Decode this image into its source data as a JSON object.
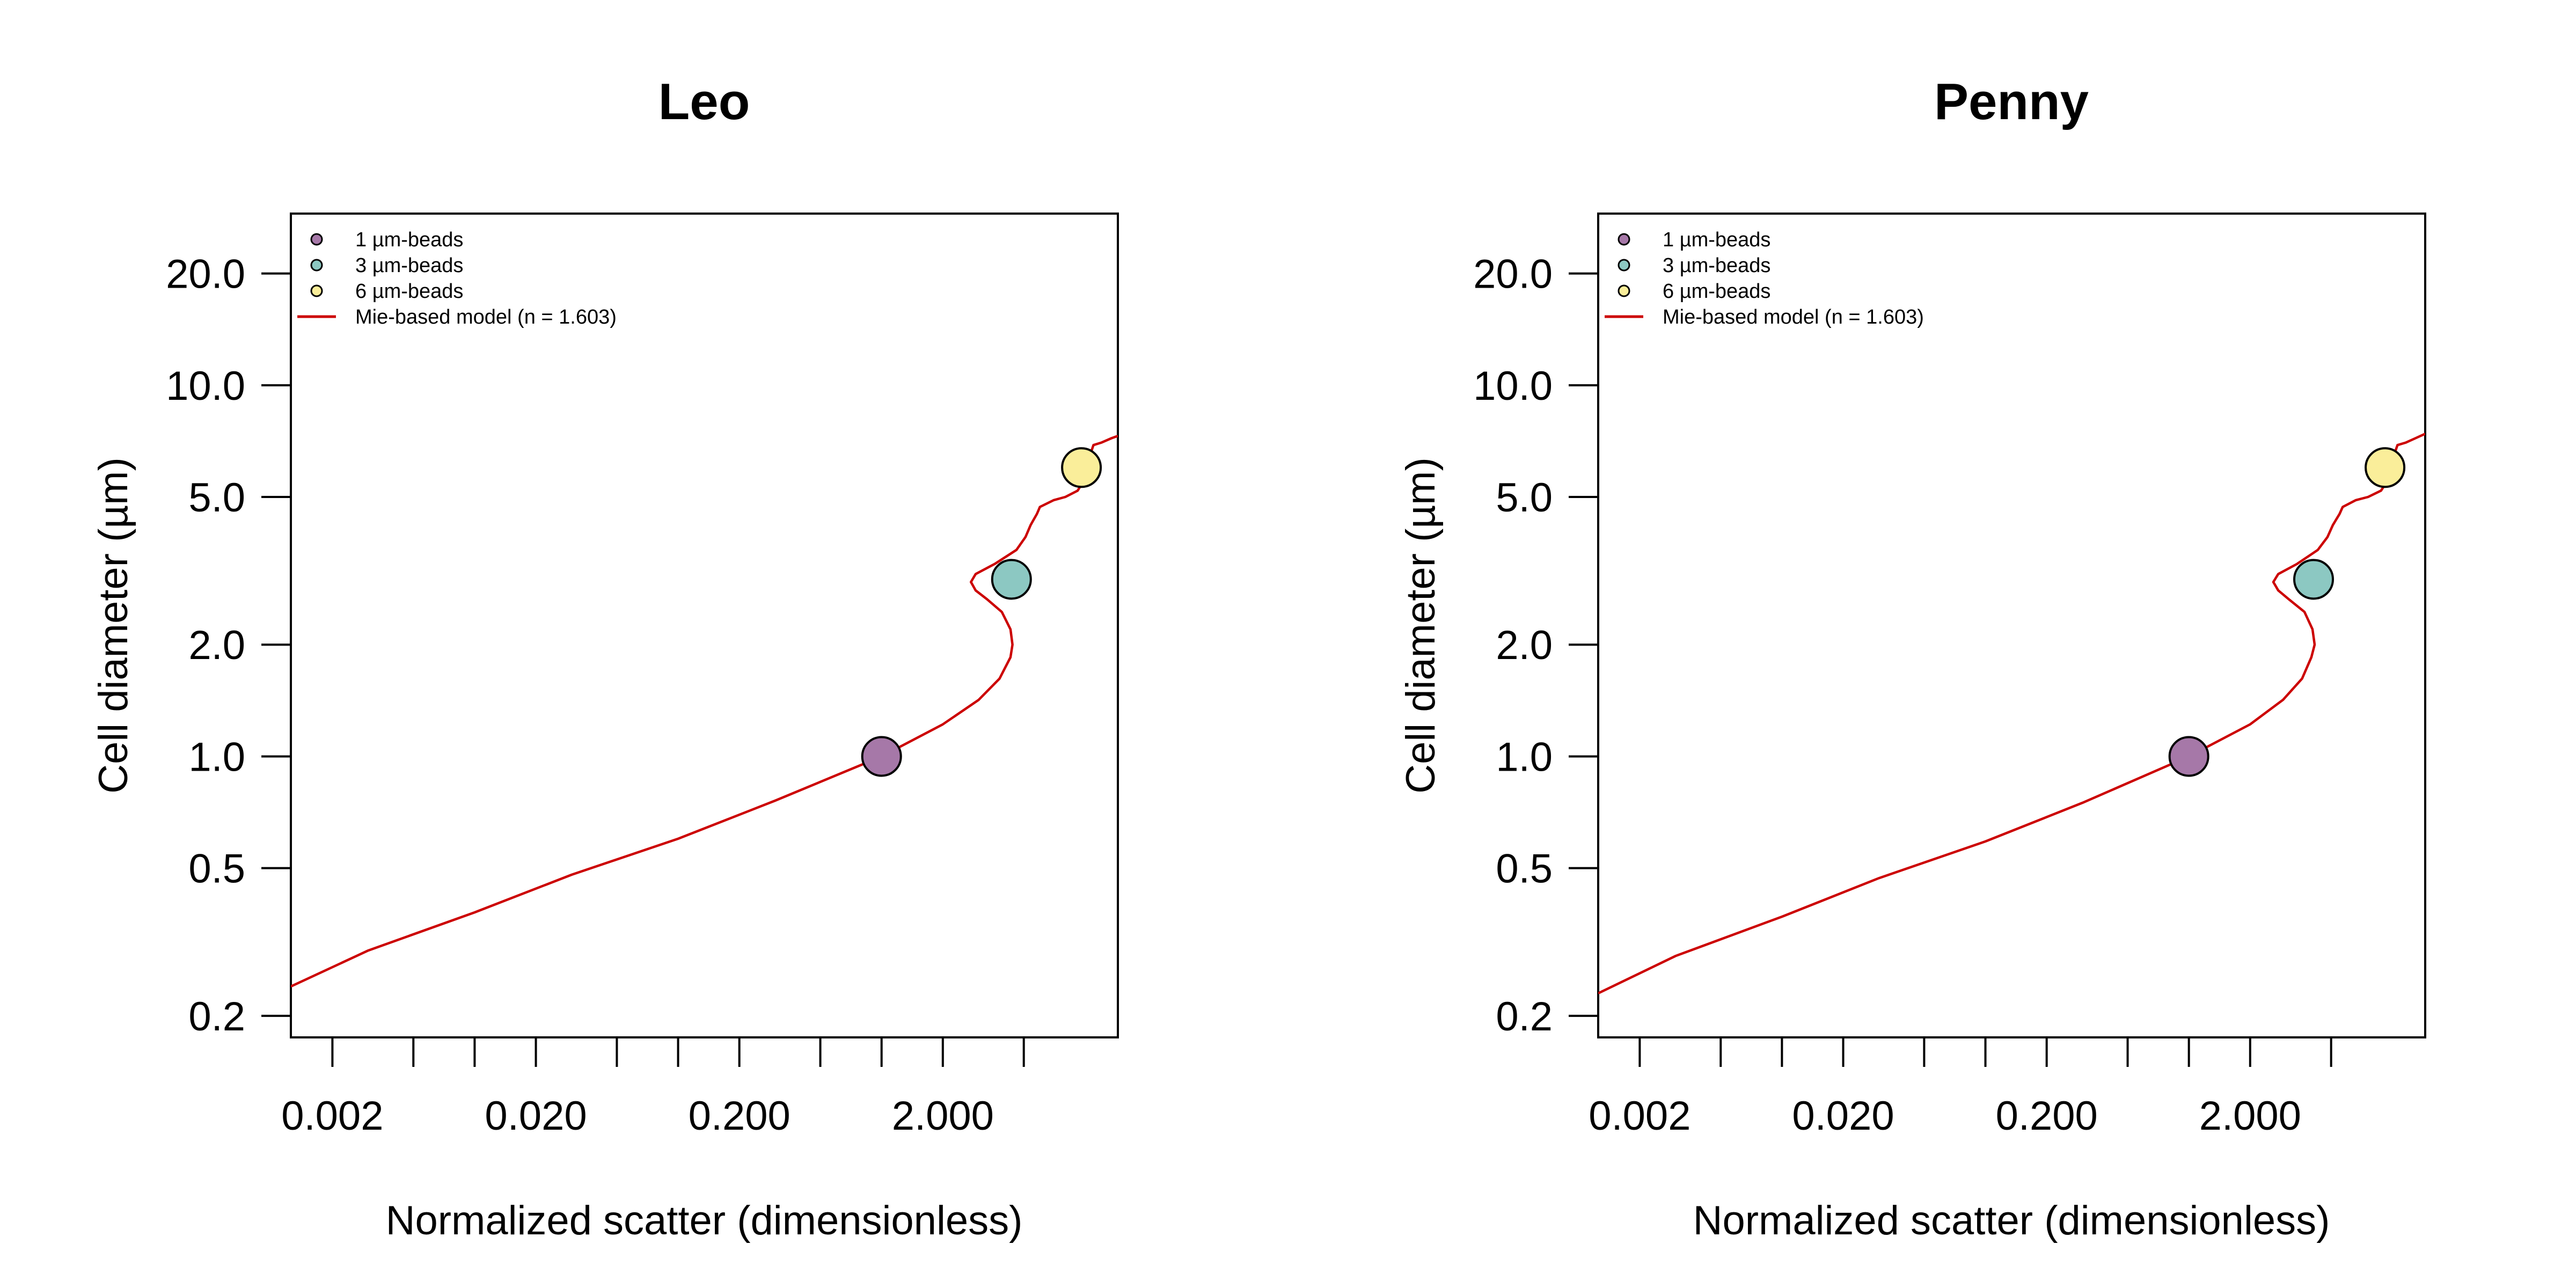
{
  "chart_data": [
    {
      "type": "line",
      "title": "Leo",
      "xlabel": "Normalized scatter (dimensionless)",
      "ylabel": "Cell diameter (µm)",
      "x_scale": "log",
      "y_scale": "log",
      "xlim": [
        0.00125,
        14.5
      ],
      "ylim": [
        0.175,
        29.0
      ],
      "x_ticks": [
        0.002,
        0.005,
        0.01,
        0.02,
        0.05,
        0.1,
        0.2,
        0.5,
        1,
        2,
        5
      ],
      "x_tick_labels": [
        {
          "value": 0.002,
          "label": "0.002"
        },
        {
          "value": 0.02,
          "label": "0.020"
        },
        {
          "value": 0.2,
          "label": "0.200"
        },
        {
          "value": 2,
          "label": "2.000"
        }
      ],
      "y_ticks": [
        {
          "value": 0.2,
          "label": "0.2"
        },
        {
          "value": 0.5,
          "label": "0.5"
        },
        {
          "value": 1,
          "label": "1.0"
        },
        {
          "value": 2,
          "label": "2.0"
        },
        {
          "value": 5,
          "label": "5.0"
        },
        {
          "value": 10,
          "label": "10.0"
        },
        {
          "value": 20,
          "label": "20.0"
        }
      ],
      "legend": {
        "position": "top-left",
        "entries": [
          {
            "label": "1 µm-beads",
            "kind": "point",
            "color": "#A678A8"
          },
          {
            "label": "3 µm-beads",
            "kind": "point",
            "color": "#8CC8C2"
          },
          {
            "label": "6 µm-beads",
            "kind": "point",
            "color": "#FAEE9A"
          },
          {
            "label": "Mie-based model (n = 1.603)",
            "kind": "line",
            "color": "#CC0000"
          }
        ]
      },
      "series": [
        {
          "name": "1 µm-beads",
          "kind": "point",
          "color": "#A678A8",
          "x": [
            1.0
          ],
          "y": [
            1.0
          ]
        },
        {
          "name": "3 µm-beads",
          "kind": "point",
          "color": "#8CC8C2",
          "x": [
            4.35
          ],
          "y": [
            3.0
          ]
        },
        {
          "name": "6 µm-beads",
          "kind": "point",
          "color": "#FAEE9A",
          "x": [
            9.6
          ],
          "y": [
            6.0
          ]
        },
        {
          "name": "Mie-based model (n = 1.603)",
          "kind": "line",
          "color": "#CC0000",
          "x": [
            0.00125,
            0.003,
            0.01,
            0.03,
            0.1,
            0.3,
            1.0,
            2.0,
            3.0,
            3.8,
            4.3,
            4.4,
            4.3,
            3.9,
            3.3,
            2.9,
            2.75,
            2.9,
            3.6,
            4.6,
            5.1,
            5.4,
            5.8,
            6.0,
            7.0,
            8.0,
            9.2,
            10.0,
            10.4,
            11.0,
            12.0,
            13.5,
            14.5
          ],
          "y": [
            0.24,
            0.3,
            0.38,
            0.48,
            0.6,
            0.76,
            1.0,
            1.22,
            1.42,
            1.62,
            1.85,
            2.0,
            2.2,
            2.45,
            2.65,
            2.8,
            2.95,
            3.1,
            3.3,
            3.6,
            3.9,
            4.2,
            4.5,
            4.7,
            4.9,
            5.0,
            5.2,
            5.6,
            6.3,
            6.9,
            7.0,
            7.2,
            7.3
          ]
        }
      ]
    },
    {
      "type": "line",
      "title": "Penny",
      "xlabel": "Normalized scatter (dimensionless)",
      "ylabel": "Cell diameter (µm)",
      "x_scale": "log",
      "y_scale": "log",
      "xlim": [
        0.00125,
        14.5
      ],
      "ylim": [
        0.175,
        29.0
      ],
      "x_ticks": [
        0.002,
        0.005,
        0.01,
        0.02,
        0.05,
        0.1,
        0.2,
        0.5,
        1,
        2,
        5
      ],
      "x_tick_labels": [
        {
          "value": 0.002,
          "label": "0.002"
        },
        {
          "value": 0.02,
          "label": "0.020"
        },
        {
          "value": 0.2,
          "label": "0.200"
        },
        {
          "value": 2,
          "label": "2.000"
        }
      ],
      "y_ticks": [
        {
          "value": 0.2,
          "label": "0.2"
        },
        {
          "value": 0.5,
          "label": "0.5"
        },
        {
          "value": 1,
          "label": "1.0"
        },
        {
          "value": 2,
          "label": "2.0"
        },
        {
          "value": 5,
          "label": "5.0"
        },
        {
          "value": 10,
          "label": "10.0"
        },
        {
          "value": 20,
          "label": "20.0"
        }
      ],
      "legend": {
        "position": "top-left",
        "entries": [
          {
            "label": "1 µm-beads",
            "kind": "point",
            "color": "#A678A8"
          },
          {
            "label": "3 µm-beads",
            "kind": "point",
            "color": "#8CC8C2"
          },
          {
            "label": "6 µm-beads",
            "kind": "point",
            "color": "#FAEE9A"
          },
          {
            "label": "Mie-based model (n = 1.603)",
            "kind": "line",
            "color": "#CC0000"
          }
        ]
      },
      "series": [
        {
          "name": "1 µm-beads",
          "kind": "point",
          "color": "#A678A8",
          "x": [
            1.0
          ],
          "y": [
            1.0
          ]
        },
        {
          "name": "3 µm-beads",
          "kind": "point",
          "color": "#8CC8C2",
          "x": [
            4.1
          ],
          "y": [
            3.0
          ]
        },
        {
          "name": "6 µm-beads",
          "kind": "point",
          "color": "#FAEE9A",
          "x": [
            9.2
          ],
          "y": [
            6.0
          ]
        },
        {
          "name": "Mie-based model (n = 1.603)",
          "kind": "line",
          "color": "#CC0000",
          "x": [
            0.00125,
            0.003,
            0.01,
            0.03,
            0.1,
            0.3,
            1.0,
            2.0,
            2.9,
            3.6,
            4.0,
            4.15,
            4.05,
            3.7,
            3.1,
            2.75,
            2.6,
            2.75,
            3.4,
            4.3,
            4.8,
            5.1,
            5.5,
            5.7,
            6.6,
            7.6,
            8.8,
            9.6,
            10.0,
            10.6,
            11.6,
            13.0,
            14.5
          ],
          "y": [
            0.23,
            0.29,
            0.37,
            0.47,
            0.59,
            0.75,
            1.0,
            1.22,
            1.42,
            1.62,
            1.85,
            2.0,
            2.2,
            2.45,
            2.65,
            2.8,
            2.95,
            3.1,
            3.3,
            3.6,
            3.9,
            4.2,
            4.5,
            4.7,
            4.9,
            5.0,
            5.2,
            5.6,
            6.3,
            6.9,
            7.0,
            7.2,
            7.4
          ]
        }
      ]
    }
  ]
}
